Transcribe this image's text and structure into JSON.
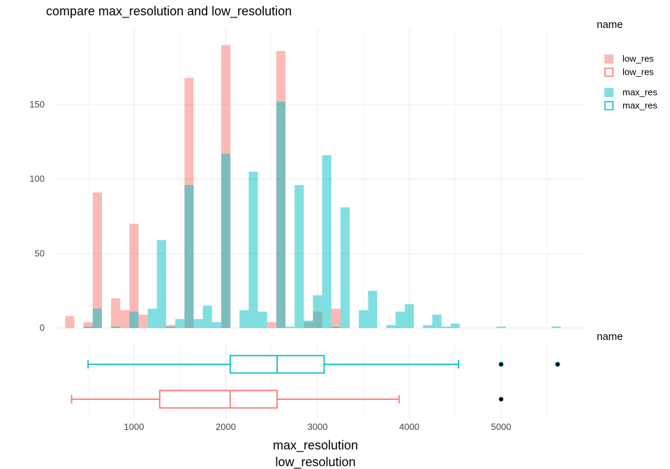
{
  "chart_data": [
    {
      "type": "histogram",
      "title": "compare  max_resolution and low_resolution",
      "xlim": [
        0,
        5700
      ],
      "ylim": [
        0,
        195
      ],
      "x_ticks": [
        1000,
        2000,
        3000,
        4000,
        5000
      ],
      "y_ticks": [
        0,
        50,
        100,
        150
      ],
      "bin_width": 100,
      "series": [
        {
          "name": "low_res",
          "color": "#F8766D",
          "bins": [
            {
              "x": 300,
              "y": 8
            },
            {
              "x": 500,
              "y": 4
            },
            {
              "x": 600,
              "y": 91
            },
            {
              "x": 800,
              "y": 20
            },
            {
              "x": 900,
              "y": 12
            },
            {
              "x": 1000,
              "y": 70
            },
            {
              "x": 1100,
              "y": 9
            },
            {
              "x": 1400,
              "y": 2
            },
            {
              "x": 1600,
              "y": 168
            },
            {
              "x": 2000,
              "y": 190
            },
            {
              "x": 2500,
              "y": 4
            },
            {
              "x": 2600,
              "y": 186
            },
            {
              "x": 2900,
              "y": 4
            },
            {
              "x": 3000,
              "y": 11
            },
            {
              "x": 3200,
              "y": 13
            }
          ]
        },
        {
          "name": "max_res",
          "color": "#00BFC4",
          "bins": [
            {
              "x": 500,
              "y": 1
            },
            {
              "x": 600,
              "y": 13
            },
            {
              "x": 800,
              "y": 1
            },
            {
              "x": 1000,
              "y": 11
            },
            {
              "x": 1200,
              "y": 13
            },
            {
              "x": 1300,
              "y": 59
            },
            {
              "x": 1400,
              "y": 1
            },
            {
              "x": 1500,
              "y": 6
            },
            {
              "x": 1600,
              "y": 96
            },
            {
              "x": 1700,
              "y": 6
            },
            {
              "x": 1800,
              "y": 15
            },
            {
              "x": 1900,
              "y": 4
            },
            {
              "x": 2000,
              "y": 117
            },
            {
              "x": 2200,
              "y": 12
            },
            {
              "x": 2300,
              "y": 105
            },
            {
              "x": 2400,
              "y": 11
            },
            {
              "x": 2600,
              "y": 152
            },
            {
              "x": 2700,
              "y": 1
            },
            {
              "x": 2800,
              "y": 96
            },
            {
              "x": 2900,
              "y": 5
            },
            {
              "x": 3000,
              "y": 22
            },
            {
              "x": 3100,
              "y": 116
            },
            {
              "x": 3200,
              "y": 1
            },
            {
              "x": 3300,
              "y": 81
            },
            {
              "x": 3500,
              "y": 12
            },
            {
              "x": 3600,
              "y": 25
            },
            {
              "x": 3800,
              "y": 2
            },
            {
              "x": 3900,
              "y": 11
            },
            {
              "x": 4000,
              "y": 16
            },
            {
              "x": 4200,
              "y": 2
            },
            {
              "x": 4300,
              "y": 9
            },
            {
              "x": 4400,
              "y": 1
            },
            {
              "x": 4500,
              "y": 3
            },
            {
              "x": 5000,
              "y": 1
            },
            {
              "x": 5600,
              "y": 1
            }
          ]
        }
      ],
      "legend": {
        "title": "name",
        "placement": "top-right",
        "entries": [
          {
            "label": "low_res",
            "style": "filled",
            "color": "#F8766D"
          },
          {
            "label": "low_res",
            "style": "outline",
            "color": "#F8766D"
          },
          {
            "label": "max_res",
            "style": "filled",
            "color": "#00BFC4"
          },
          {
            "label": "max_res",
            "style": "outline",
            "color": "#00BFC4"
          }
        ]
      }
    },
    {
      "type": "boxplot",
      "legend_title": "name",
      "series": [
        {
          "name": "max_res",
          "color": "#00BFC4",
          "whisker_low": 500,
          "q1": 2048,
          "median": 2560,
          "q3": 3072,
          "whisker_high": 4536,
          "outliers": [
            5000,
            5616
          ]
        },
        {
          "name": "low_res",
          "color": "#F8766D",
          "whisker_low": 320,
          "q1": 1280,
          "median": 2048,
          "q3": 2560,
          "whisker_high": 3888,
          "outliers": [
            5000
          ]
        }
      ],
      "xlabel_top": "max_resolution",
      "xlabel_bottom": "low_resolution"
    }
  ]
}
